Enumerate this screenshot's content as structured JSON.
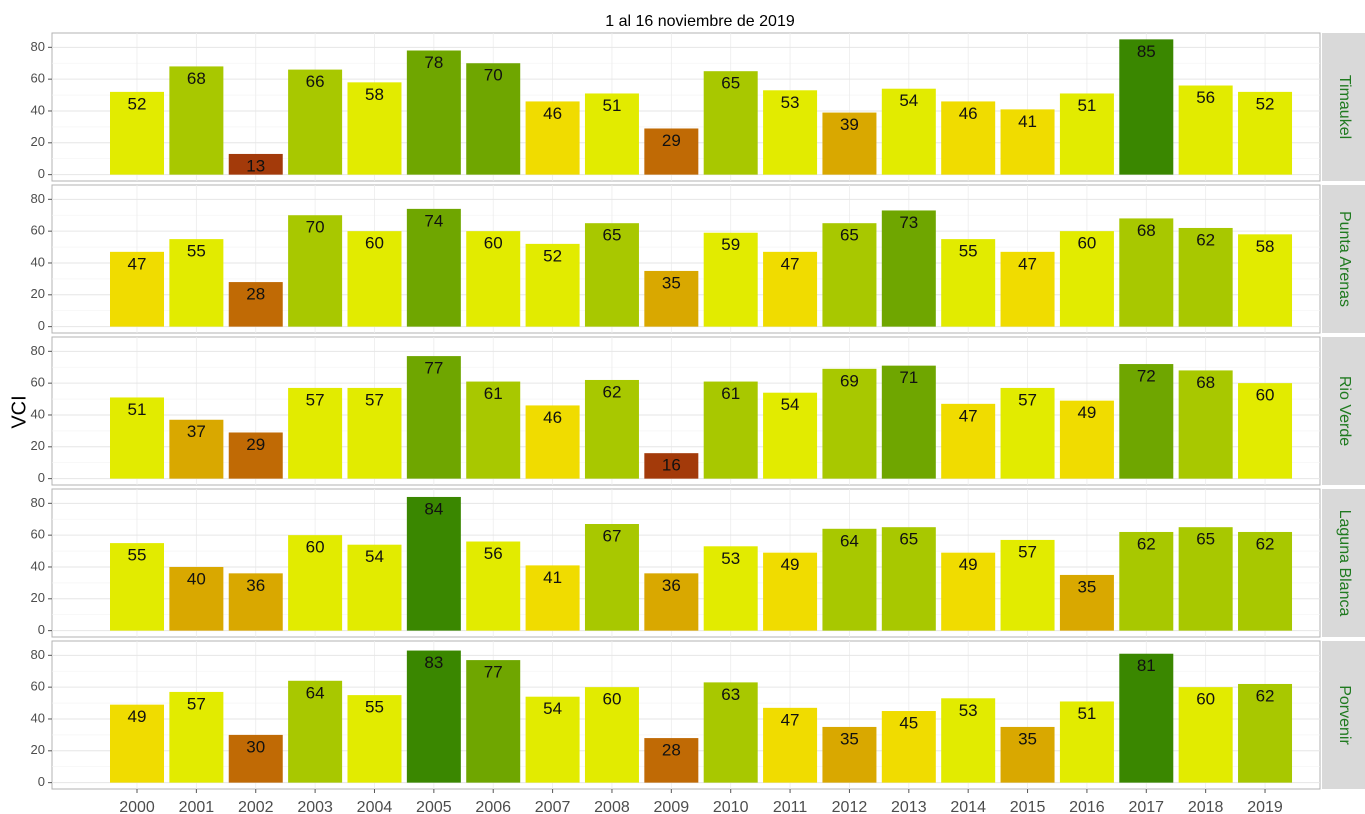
{
  "chart_data": {
    "type": "bar",
    "title": "1 al 16 noviembre de 2019",
    "y_label": "VCI",
    "categories": [
      "2000",
      "2001",
      "2002",
      "2003",
      "2004",
      "2005",
      "2006",
      "2007",
      "2008",
      "2009",
      "2010",
      "2011",
      "2012",
      "2013",
      "2014",
      "2015",
      "2016",
      "2017",
      "2018",
      "2019"
    ],
    "ylim": [
      -4,
      89
    ],
    "yticks": [
      0,
      20,
      40,
      60,
      80
    ],
    "grid": true,
    "series": [
      {
        "name": "Timaukel",
        "values": [
          52,
          68,
          13,
          66,
          58,
          78,
          70,
          46,
          51,
          29,
          65,
          53,
          39,
          54,
          46,
          41,
          51,
          85,
          56,
          52
        ],
        "colors": [
          "#e2eb00",
          "#a8c800",
          "#a33a0a",
          "#a8c800",
          "#e2eb00",
          "#6fa600",
          "#6fa600",
          "#f0dc00",
          "#e2eb00",
          "#c06a05",
          "#a8c800",
          "#e2eb00",
          "#d9a800",
          "#e2eb00",
          "#f0dc00",
          "#f0dc00",
          "#e2eb00",
          "#3a8700",
          "#e2eb00",
          "#e2eb00"
        ]
      },
      {
        "name": "Punta Arenas",
        "values": [
          47,
          55,
          28,
          70,
          60,
          74,
          60,
          52,
          65,
          35,
          59,
          47,
          65,
          73,
          55,
          47,
          60,
          68,
          62,
          58
        ],
        "colors": [
          "#f0dc00",
          "#e2eb00",
          "#c06a05",
          "#a8c800",
          "#e2eb00",
          "#6fa600",
          "#e2eb00",
          "#e2eb00",
          "#a8c800",
          "#d9a800",
          "#e2eb00",
          "#f0dc00",
          "#a8c800",
          "#6fa600",
          "#e2eb00",
          "#f0dc00",
          "#e2eb00",
          "#a8c800",
          "#a8c800",
          "#e2eb00"
        ]
      },
      {
        "name": "Rio Verde",
        "values": [
          51,
          37,
          29,
          57,
          57,
          77,
          61,
          46,
          62,
          16,
          61,
          54,
          69,
          71,
          47,
          57,
          49,
          72,
          68,
          60
        ],
        "colors": [
          "#e2eb00",
          "#d9a800",
          "#c06a05",
          "#e2eb00",
          "#e2eb00",
          "#6fa600",
          "#a8c800",
          "#f0dc00",
          "#a8c800",
          "#a33a0a",
          "#a8c800",
          "#e2eb00",
          "#a8c800",
          "#6fa600",
          "#f0dc00",
          "#e2eb00",
          "#f0dc00",
          "#6fa600",
          "#a8c800",
          "#e2eb00"
        ]
      },
      {
        "name": "Laguna Blanca",
        "values": [
          55,
          40,
          36,
          60,
          54,
          84,
          56,
          41,
          67,
          36,
          53,
          49,
          64,
          65,
          49,
          57,
          35,
          62,
          65,
          62
        ],
        "colors": [
          "#e2eb00",
          "#d9a800",
          "#d9a800",
          "#e2eb00",
          "#e2eb00",
          "#3a8700",
          "#e2eb00",
          "#f0dc00",
          "#a8c800",
          "#d9a800",
          "#e2eb00",
          "#f0dc00",
          "#a8c800",
          "#a8c800",
          "#f0dc00",
          "#e2eb00",
          "#d9a800",
          "#a8c800",
          "#a8c800",
          "#a8c800"
        ]
      },
      {
        "name": "Porvenir",
        "values": [
          49,
          57,
          30,
          64,
          55,
          83,
          77,
          54,
          60,
          28,
          63,
          47,
          35,
          45,
          53,
          35,
          51,
          81,
          60,
          62
        ],
        "colors": [
          "#f0dc00",
          "#e2eb00",
          "#c06a05",
          "#a8c800",
          "#e2eb00",
          "#3a8700",
          "#6fa600",
          "#e2eb00",
          "#e2eb00",
          "#c06a05",
          "#a8c800",
          "#f0dc00",
          "#d9a800",
          "#f0dc00",
          "#e2eb00",
          "#d9a800",
          "#e2eb00",
          "#3a8700",
          "#e2eb00",
          "#a8c800"
        ]
      }
    ]
  }
}
